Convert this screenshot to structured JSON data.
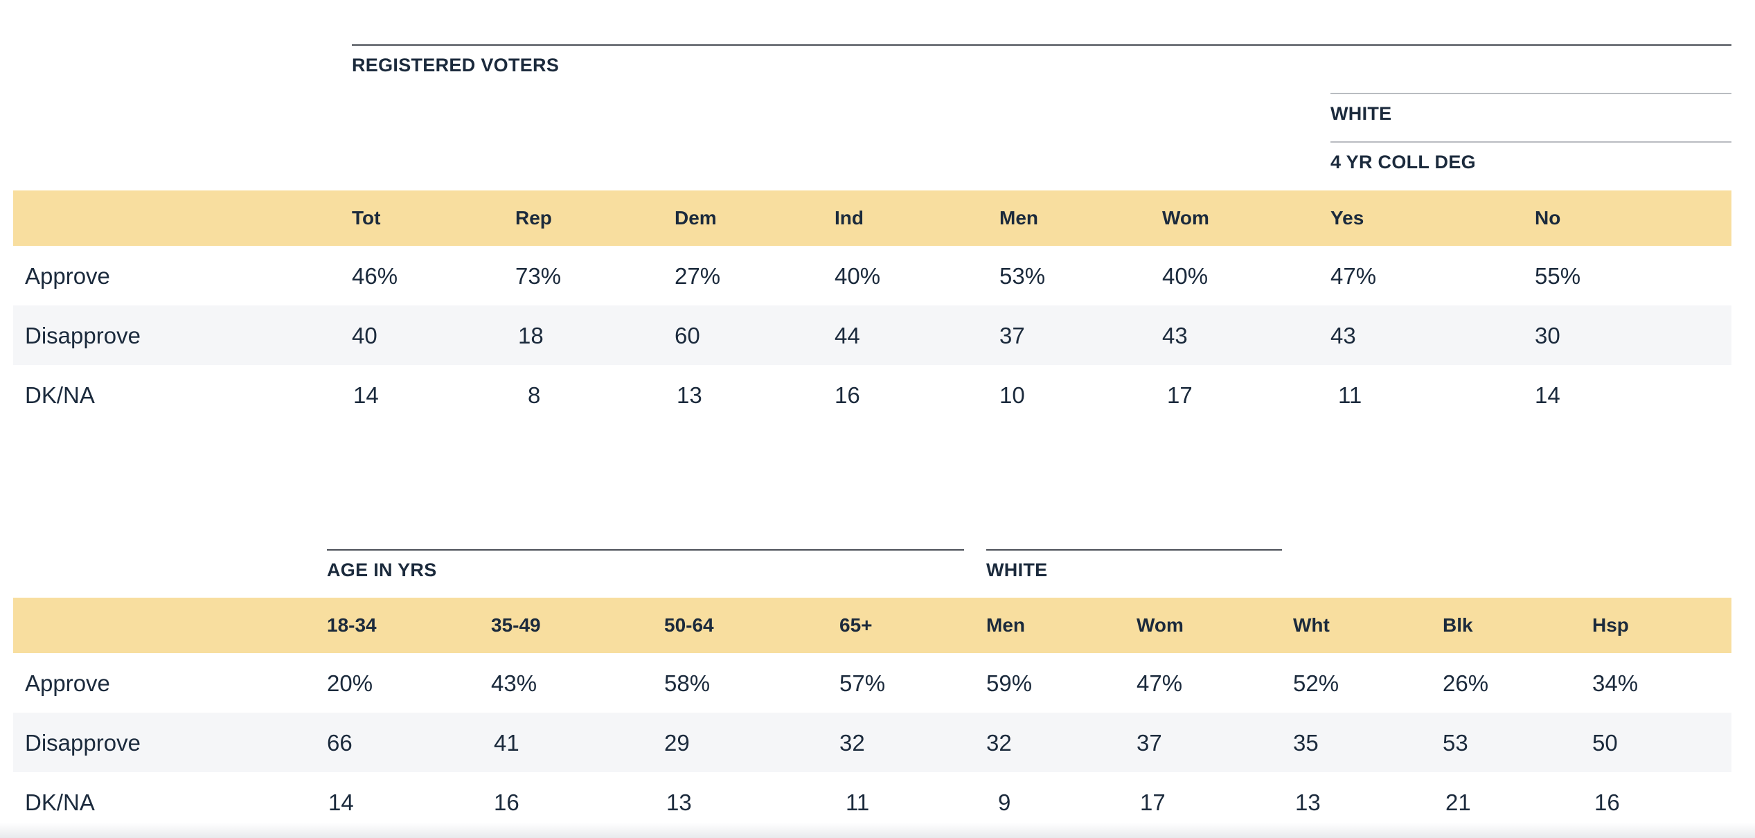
{
  "table1": {
    "group_main": "REGISTERED VOTERS",
    "group_white": "WHITE",
    "group_coll": "4 YR COLL DEG",
    "columns": [
      "Tot",
      "Rep",
      "Dem",
      "Ind",
      "Men",
      "Wom",
      "Yes",
      "No"
    ],
    "rows": [
      {
        "label": "Approve",
        "values": [
          "46%",
          "73%",
          "27%",
          "40%",
          "53%",
          "40%",
          "47%",
          "55%"
        ]
      },
      {
        "label": "Disapprove",
        "values": [
          "40",
          "18",
          "60",
          "44",
          "37",
          "43",
          "43",
          "30"
        ]
      },
      {
        "label": "DK/NA",
        "values": [
          "14",
          "8",
          "13",
          "16",
          "10",
          "17",
          "11",
          "14"
        ]
      }
    ]
  },
  "table2": {
    "group_age": "AGE IN YRS",
    "group_white": "WHITE",
    "columns": [
      "18-34",
      "35-49",
      "50-64",
      "65+",
      "Men",
      "Wom",
      "Wht",
      "Blk",
      "Hsp"
    ],
    "rows": [
      {
        "label": "Approve",
        "values": [
          "20%",
          "43%",
          "58%",
          "57%",
          "59%",
          "47%",
          "52%",
          "26%",
          "34%"
        ]
      },
      {
        "label": "Disapprove",
        "values": [
          "66",
          "41",
          "29",
          "32",
          "32",
          "37",
          "35",
          "53",
          "50"
        ]
      },
      {
        "label": "DK/NA",
        "values": [
          "14",
          "16",
          "13",
          "11",
          "9",
          "17",
          "13",
          "21",
          "16"
        ]
      }
    ]
  }
}
